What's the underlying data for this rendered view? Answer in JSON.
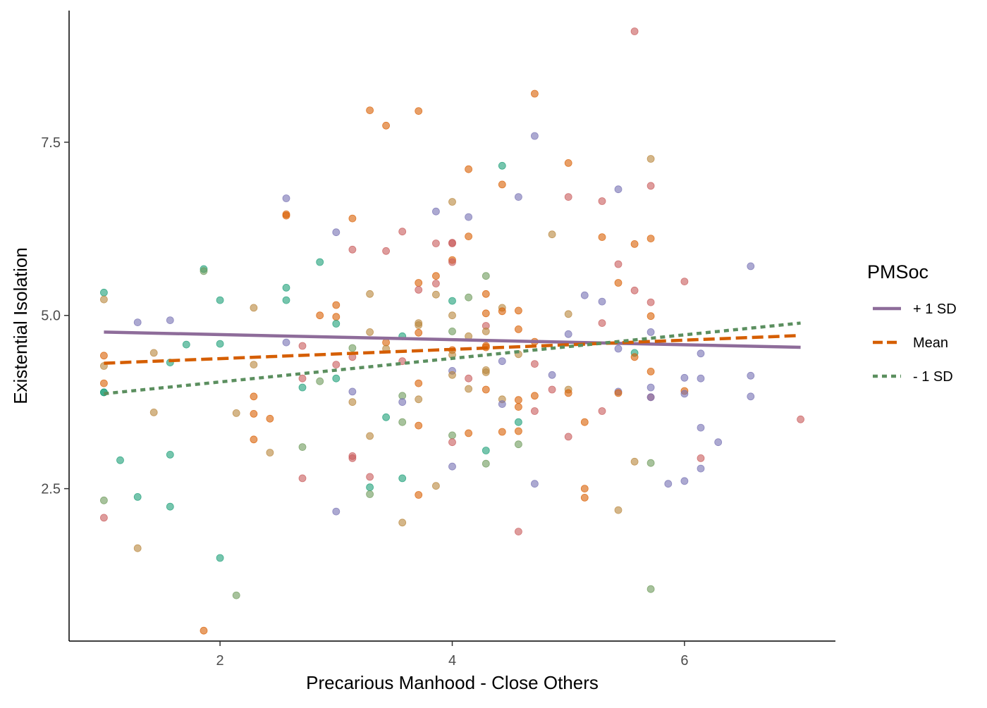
{
  "chart_data": {
    "type": "scatter",
    "xlabel": "Precarious Manhood - Close Others",
    "ylabel": "Existential Isolation",
    "xlim": [
      0.7,
      7.3
    ],
    "ylim": [
      0.3,
      9.4
    ],
    "x_ticks": [
      2,
      4,
      6
    ],
    "x_tick_labels": [
      "2",
      "4",
      "6"
    ],
    "y_ticks": [
      2.5,
      5.0,
      7.5
    ],
    "y_tick_labels": [
      "2.5",
      "5.0",
      "7.5"
    ],
    "grid": false,
    "legend": {
      "title": "PMSoc",
      "position": "right",
      "entries": [
        {
          "label": "+ 1 SD",
          "color": "#8e6c9a",
          "dash": "solid"
        },
        {
          "label": "Mean",
          "color": "#d55e00",
          "dash": "dashed"
        },
        {
          "label": "- 1 SD",
          "color": "#5b8f5f",
          "dash": "dotted"
        }
      ]
    },
    "series": [
      {
        "name": "+ 1 SD",
        "color": "#8e6c9a",
        "dash": "solid",
        "line": {
          "x": [
            1.0,
            7.0
          ],
          "y": [
            4.76,
            4.54
          ]
        }
      },
      {
        "name": "Mean",
        "color": "#d55e00",
        "dash": "dashed",
        "line": {
          "x": [
            1.0,
            7.0
          ],
          "y": [
            4.31,
            4.71
          ]
        }
      },
      {
        "name": "- 1 SD",
        "color": "#5b8f5f",
        "dash": "dotted",
        "line": {
          "x": [
            1.0,
            7.0
          ],
          "y": [
            3.87,
            4.89
          ]
        }
      }
    ],
    "point_colors": [
      "#1b9e77",
      "#d95f02",
      "#7570b3",
      "#c85a5a",
      "#6d9a5a",
      "#b8863b"
    ],
    "points": [
      [
        1.0,
        5.33,
        0
      ],
      [
        1.0,
        5.23,
        5
      ],
      [
        1.0,
        4.42,
        1
      ],
      [
        1.0,
        4.27,
        5
      ],
      [
        1.0,
        4.02,
        1
      ],
      [
        1.0,
        3.89,
        0
      ],
      [
        1.0,
        3.89,
        0
      ],
      [
        1.0,
        2.33,
        4
      ],
      [
        1.0,
        2.08,
        3
      ],
      [
        1.14,
        2.91,
        0
      ],
      [
        1.29,
        4.9,
        2
      ],
      [
        1.29,
        2.38,
        0
      ],
      [
        1.29,
        1.64,
        5
      ],
      [
        1.43,
        4.46,
        5
      ],
      [
        1.43,
        3.6,
        5
      ],
      [
        1.57,
        4.93,
        2
      ],
      [
        1.57,
        4.32,
        0
      ],
      [
        1.57,
        2.99,
        0
      ],
      [
        1.57,
        2.24,
        0
      ],
      [
        1.71,
        4.58,
        0
      ],
      [
        1.86,
        5.67,
        0
      ],
      [
        1.86,
        5.64,
        4
      ],
      [
        1.86,
        0.45,
        1
      ],
      [
        2.0,
        5.22,
        0
      ],
      [
        2.0,
        4.59,
        0
      ],
      [
        2.0,
        1.5,
        0
      ],
      [
        2.14,
        3.59,
        5
      ],
      [
        2.14,
        0.96,
        4
      ],
      [
        2.29,
        5.11,
        5
      ],
      [
        2.29,
        4.29,
        5
      ],
      [
        2.29,
        3.83,
        1
      ],
      [
        2.29,
        3.58,
        1
      ],
      [
        2.29,
        3.21,
        1
      ],
      [
        2.43,
        3.51,
        1
      ],
      [
        2.43,
        3.02,
        5
      ],
      [
        2.57,
        6.69,
        2
      ],
      [
        2.57,
        6.46,
        1
      ],
      [
        2.57,
        6.44,
        1
      ],
      [
        2.57,
        5.4,
        0
      ],
      [
        2.57,
        5.22,
        0
      ],
      [
        2.57,
        4.61,
        2
      ],
      [
        2.71,
        4.56,
        3
      ],
      [
        2.71,
        4.09,
        3
      ],
      [
        2.71,
        3.96,
        0
      ],
      [
        2.71,
        3.1,
        4
      ],
      [
        2.71,
        2.65,
        3
      ],
      [
        2.86,
        5.77,
        0
      ],
      [
        2.86,
        5.0,
        1
      ],
      [
        2.86,
        4.05,
        4
      ],
      [
        3.0,
        6.2,
        2
      ],
      [
        3.0,
        5.15,
        1
      ],
      [
        3.0,
        4.98,
        1
      ],
      [
        3.0,
        4.88,
        0
      ],
      [
        3.0,
        4.29,
        3
      ],
      [
        3.0,
        4.09,
        0
      ],
      [
        3.0,
        2.17,
        2
      ],
      [
        3.14,
        6.4,
        1
      ],
      [
        3.14,
        5.95,
        3
      ],
      [
        3.14,
        4.53,
        4
      ],
      [
        3.14,
        4.4,
        3
      ],
      [
        3.14,
        3.9,
        2
      ],
      [
        3.14,
        3.75,
        5
      ],
      [
        3.14,
        2.97,
        3
      ],
      [
        3.14,
        2.94,
        3
      ],
      [
        3.29,
        7.96,
        1
      ],
      [
        3.29,
        5.31,
        5
      ],
      [
        3.29,
        4.76,
        5
      ],
      [
        3.29,
        3.26,
        5
      ],
      [
        3.29,
        2.67,
        3
      ],
      [
        3.29,
        2.52,
        0
      ],
      [
        3.29,
        2.42,
        4
      ],
      [
        3.43,
        7.74,
        1
      ],
      [
        3.43,
        5.93,
        3
      ],
      [
        3.43,
        4.61,
        1
      ],
      [
        3.43,
        4.52,
        5
      ],
      [
        3.43,
        3.53,
        0
      ],
      [
        3.57,
        6.21,
        3
      ],
      [
        3.57,
        4.7,
        0
      ],
      [
        3.57,
        4.34,
        3
      ],
      [
        3.57,
        3.84,
        4
      ],
      [
        3.57,
        3.75,
        2
      ],
      [
        3.57,
        3.46,
        4
      ],
      [
        3.57,
        2.65,
        0
      ],
      [
        3.57,
        2.01,
        5
      ],
      [
        3.71,
        7.95,
        1
      ],
      [
        3.71,
        5.47,
        1
      ],
      [
        3.71,
        5.37,
        3
      ],
      [
        3.71,
        4.89,
        5
      ],
      [
        3.71,
        4.86,
        5
      ],
      [
        3.71,
        4.75,
        1
      ],
      [
        3.71,
        4.02,
        1
      ],
      [
        3.71,
        3.79,
        5
      ],
      [
        3.71,
        3.41,
        1
      ],
      [
        3.71,
        2.41,
        1
      ],
      [
        3.86,
        6.5,
        2
      ],
      [
        3.86,
        6.04,
        3
      ],
      [
        3.86,
        5.57,
        1
      ],
      [
        3.86,
        5.46,
        3
      ],
      [
        3.86,
        5.3,
        5
      ],
      [
        3.86,
        2.54,
        5
      ],
      [
        4.0,
        6.64,
        5
      ],
      [
        4.0,
        6.05,
        3
      ],
      [
        4.0,
        6.04,
        3
      ],
      [
        4.0,
        5.8,
        1
      ],
      [
        4.0,
        5.77,
        3
      ],
      [
        4.0,
        5.21,
        0
      ],
      [
        4.0,
        5.0,
        5
      ],
      [
        4.0,
        4.77,
        4
      ],
      [
        4.0,
        4.5,
        1
      ],
      [
        4.0,
        4.43,
        5
      ],
      [
        4.0,
        4.2,
        2
      ],
      [
        4.0,
        4.14,
        5
      ],
      [
        4.0,
        3.27,
        4
      ],
      [
        4.0,
        3.17,
        3
      ],
      [
        4.0,
        2.82,
        2
      ],
      [
        4.14,
        7.11,
        1
      ],
      [
        4.14,
        6.42,
        2
      ],
      [
        4.14,
        6.14,
        1
      ],
      [
        4.14,
        5.26,
        4
      ],
      [
        4.14,
        4.7,
        5
      ],
      [
        4.14,
        4.09,
        3
      ],
      [
        4.14,
        3.94,
        5
      ],
      [
        4.14,
        3.3,
        1
      ],
      [
        4.29,
        5.57,
        4
      ],
      [
        4.29,
        5.31,
        1
      ],
      [
        4.29,
        5.03,
        1
      ],
      [
        4.29,
        4.85,
        3
      ],
      [
        4.29,
        4.77,
        5
      ],
      [
        4.29,
        4.56,
        1
      ],
      [
        4.29,
        4.54,
        1
      ],
      [
        4.29,
        4.21,
        5
      ],
      [
        4.29,
        4.18,
        5
      ],
      [
        4.29,
        3.93,
        1
      ],
      [
        4.29,
        3.05,
        0
      ],
      [
        4.29,
        2.86,
        4
      ],
      [
        4.43,
        7.16,
        0
      ],
      [
        4.43,
        6.89,
        1
      ],
      [
        4.43,
        5.11,
        5
      ],
      [
        4.43,
        5.06,
        1
      ],
      [
        4.43,
        4.34,
        2
      ],
      [
        4.43,
        3.79,
        5
      ],
      [
        4.43,
        3.72,
        2
      ],
      [
        4.43,
        3.32,
        1
      ],
      [
        4.57,
        6.71,
        2
      ],
      [
        4.57,
        5.07,
        1
      ],
      [
        4.57,
        4.8,
        1
      ],
      [
        4.57,
        4.44,
        5
      ],
      [
        4.57,
        3.78,
        1
      ],
      [
        4.57,
        3.68,
        1
      ],
      [
        4.57,
        3.46,
        0
      ],
      [
        4.57,
        3.33,
        1
      ],
      [
        4.57,
        3.14,
        4
      ],
      [
        4.57,
        1.88,
        3
      ],
      [
        4.71,
        8.2,
        1
      ],
      [
        4.71,
        7.59,
        2
      ],
      [
        4.71,
        4.62,
        1
      ],
      [
        4.71,
        4.3,
        3
      ],
      [
        4.71,
        3.84,
        1
      ],
      [
        4.71,
        3.62,
        3
      ],
      [
        4.71,
        2.57,
        2
      ],
      [
        4.86,
        6.17,
        5
      ],
      [
        4.86,
        4.14,
        2
      ],
      [
        4.86,
        3.93,
        3
      ],
      [
        5.0,
        7.2,
        1
      ],
      [
        5.0,
        6.71,
        3
      ],
      [
        5.0,
        5.02,
        5
      ],
      [
        5.0,
        4.73,
        2
      ],
      [
        5.0,
        3.93,
        5
      ],
      [
        5.0,
        3.88,
        1
      ],
      [
        5.0,
        3.25,
        3
      ],
      [
        5.14,
        5.29,
        2
      ],
      [
        5.14,
        3.46,
        1
      ],
      [
        5.14,
        2.5,
        1
      ],
      [
        5.14,
        2.37,
        1
      ],
      [
        5.29,
        6.65,
        3
      ],
      [
        5.29,
        6.13,
        1
      ],
      [
        5.29,
        5.2,
        2
      ],
      [
        5.29,
        4.89,
        3
      ],
      [
        5.29,
        3.62,
        3
      ],
      [
        5.43,
        6.82,
        2
      ],
      [
        5.43,
        5.74,
        3
      ],
      [
        5.43,
        5.47,
        1
      ],
      [
        5.43,
        4.52,
        2
      ],
      [
        5.43,
        3.9,
        2
      ],
      [
        5.43,
        3.88,
        1
      ],
      [
        5.43,
        2.19,
        5
      ],
      [
        5.57,
        9.1,
        3
      ],
      [
        5.57,
        6.03,
        1
      ],
      [
        5.57,
        5.36,
        3
      ],
      [
        5.57,
        4.46,
        0
      ],
      [
        5.57,
        4.4,
        1
      ],
      [
        5.57,
        2.89,
        5
      ],
      [
        5.71,
        7.26,
        5
      ],
      [
        5.71,
        6.87,
        3
      ],
      [
        5.71,
        6.11,
        1
      ],
      [
        5.71,
        5.19,
        3
      ],
      [
        5.71,
        4.99,
        1
      ],
      [
        5.71,
        4.76,
        2
      ],
      [
        5.71,
        4.19,
        1
      ],
      [
        5.71,
        3.96,
        2
      ],
      [
        5.71,
        3.82,
        3
      ],
      [
        5.71,
        3.82,
        2
      ],
      [
        5.71,
        2.87,
        4
      ],
      [
        5.71,
        1.05,
        4
      ],
      [
        5.86,
        2.57,
        2
      ],
      [
        6.0,
        5.49,
        3
      ],
      [
        6.0,
        4.1,
        2
      ],
      [
        6.0,
        3.91,
        1
      ],
      [
        6.0,
        3.87,
        2
      ],
      [
        6.0,
        2.61,
        2
      ],
      [
        6.14,
        4.45,
        2
      ],
      [
        6.14,
        4.09,
        2
      ],
      [
        6.14,
        3.38,
        2
      ],
      [
        6.14,
        2.94,
        3
      ],
      [
        6.14,
        2.79,
        2
      ],
      [
        6.29,
        3.17,
        2
      ],
      [
        6.57,
        5.71,
        2
      ],
      [
        6.57,
        4.13,
        2
      ],
      [
        6.57,
        3.83,
        2
      ],
      [
        7.0,
        3.5,
        3
      ]
    ]
  }
}
